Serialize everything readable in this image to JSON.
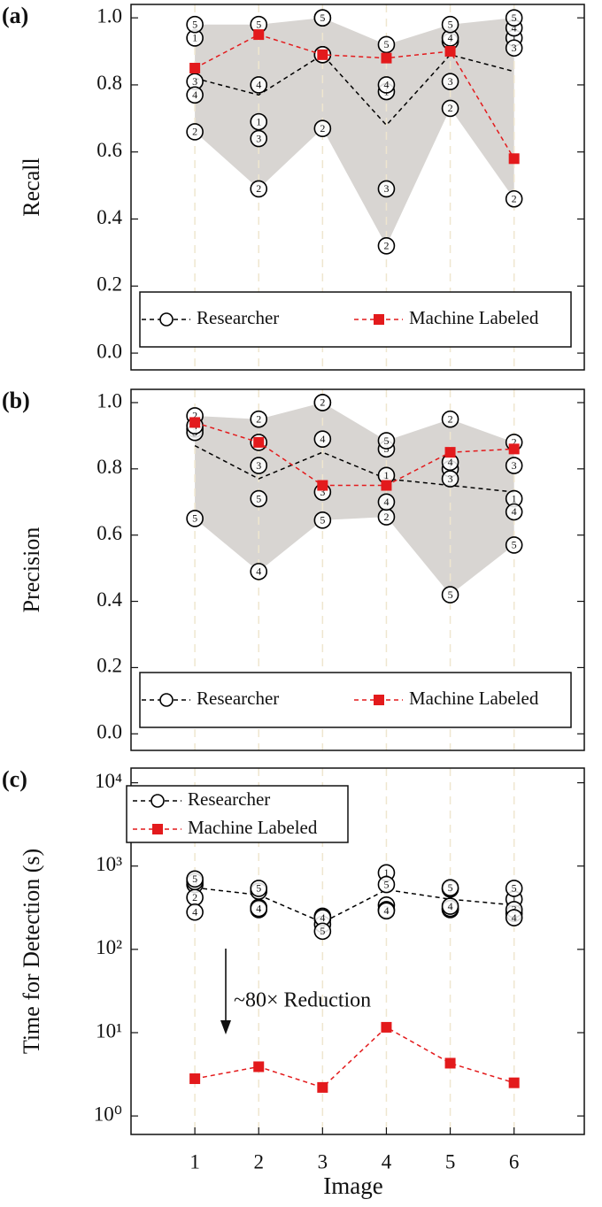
{
  "chart_data": [
    {
      "type": "line",
      "panel_label": "(a)",
      "y_label": "Recall",
      "x": [
        1,
        2,
        3,
        4,
        5,
        6
      ],
      "xlim": [
        0,
        7.1
      ],
      "ylim": [
        -0.05,
        1.04
      ],
      "yticks": [
        {
          "value": 0,
          "label": "0.0"
        },
        0.2,
        0.4,
        0.6,
        0.8,
        {
          "value": 1,
          "label": "1.0"
        }
      ],
      "grid": true,
      "band_color": "#d8d5d2",
      "legend": "lower center",
      "annotators": [
        {
          "name": "1",
          "values": [
            0.94,
            0.69,
            1.0,
            0.78,
            0.93,
            0.94
          ]
        },
        {
          "name": "2",
          "values": [
            0.66,
            0.49,
            0.67,
            0.32,
            0.73,
            0.46
          ]
        },
        {
          "name": "3",
          "values": [
            0.81,
            0.64,
            0.89,
            0.49,
            0.81,
            0.91
          ]
        },
        {
          "name": "4",
          "values": [
            0.77,
            0.8,
            0.89,
            0.8,
            0.94,
            0.97
          ]
        },
        {
          "name": "5",
          "values": [
            0.98,
            0.98,
            1.0,
            0.92,
            0.98,
            1.0
          ]
        }
      ],
      "series": [
        {
          "name": "Researcher",
          "color": "#000000",
          "marker": "circle",
          "values": [
            0.82,
            0.77,
            0.89,
            0.68,
            0.89,
            0.84
          ]
        },
        {
          "name": "Machine Labeled",
          "color": "#e31a1c",
          "marker": "square",
          "values": [
            0.85,
            0.95,
            0.89,
            0.88,
            0.9,
            0.58
          ]
        }
      ]
    },
    {
      "type": "line",
      "panel_label": "(b)",
      "y_label": "Precision",
      "x": [
        1,
        2,
        3,
        4,
        5,
        6
      ],
      "xlim": [
        0,
        7.1
      ],
      "ylim": [
        -0.05,
        1.04
      ],
      "yticks": [
        {
          "value": 0,
          "label": "0.0"
        },
        0.2,
        0.4,
        0.6,
        0.8,
        {
          "value": 1,
          "label": "1.0"
        }
      ],
      "grid": true,
      "band_color": "#d8d5d2",
      "legend": "lower center",
      "annotators": [
        {
          "name": "1",
          "values": [
            0.92,
            0.88,
            1.0,
            0.78,
            0.8,
            0.71
          ]
        },
        {
          "name": "2",
          "values": [
            0.96,
            0.95,
            1.0,
            0.655,
            0.95,
            0.88
          ]
        },
        {
          "name": "3",
          "values": [
            0.91,
            0.81,
            0.73,
            0.86,
            0.77,
            0.81
          ]
        },
        {
          "name": "4",
          "values": [
            0.93,
            0.49,
            0.89,
            0.7,
            0.82,
            0.67
          ]
        },
        {
          "name": "5",
          "values": [
            0.65,
            0.71,
            0.645,
            0.885,
            0.42,
            0.57
          ]
        }
      ],
      "series": [
        {
          "name": "Researcher",
          "color": "#000000",
          "marker": "circle",
          "values": [
            0.87,
            0.77,
            0.85,
            0.77,
            0.75,
            0.73
          ]
        },
        {
          "name": "Machine Labeled",
          "color": "#e31a1c",
          "marker": "square",
          "values": [
            0.94,
            0.88,
            0.75,
            0.75,
            0.85,
            0.86
          ]
        }
      ]
    },
    {
      "type": "line",
      "panel_label": "(c)",
      "y_label": "Time for Detection (s)",
      "x_label": "Image",
      "x": [
        1,
        2,
        3,
        4,
        5,
        6
      ],
      "xlim": [
        0,
        7.1
      ],
      "xticks": [
        1,
        2,
        3,
        4,
        5,
        6
      ],
      "y_log": true,
      "ylim": [
        0.6,
        15000
      ],
      "yticks": [
        {
          "value": 1,
          "label": "10⁰"
        },
        {
          "value": 10,
          "label": "10¹"
        },
        {
          "value": 100,
          "label": "10²"
        },
        {
          "value": 1000,
          "label": "10³"
        },
        {
          "value": 10000,
          "label": "10⁴"
        }
      ],
      "grid": true,
      "legend": "upper left",
      "annotation": "~80× Reduction",
      "annotators": [
        {
          "name": "1",
          "values": [
            600,
            320,
            230,
            830,
            530,
            400
          ]
        },
        {
          "name": "2",
          "values": [
            420,
            500,
            250,
            340,
            300,
            270
          ]
        },
        {
          "name": "3",
          "values": [
            650,
            300,
            200,
            300,
            310,
            300
          ]
        },
        {
          "name": "4",
          "values": [
            280,
            310,
            240,
            290,
            330,
            240
          ]
        },
        {
          "name": "5",
          "values": [
            700,
            540,
            165,
            600,
            550,
            540
          ]
        }
      ],
      "series": [
        {
          "name": "Researcher",
          "color": "#000000",
          "marker": "circle",
          "values": [
            550,
            450,
            210,
            520,
            400,
            340
          ]
        },
        {
          "name": "Machine Labeled",
          "color": "#e31a1c",
          "marker": "square",
          "values": [
            2.8,
            3.9,
            2.2,
            11.6,
            4.3,
            2.5
          ]
        }
      ]
    }
  ]
}
